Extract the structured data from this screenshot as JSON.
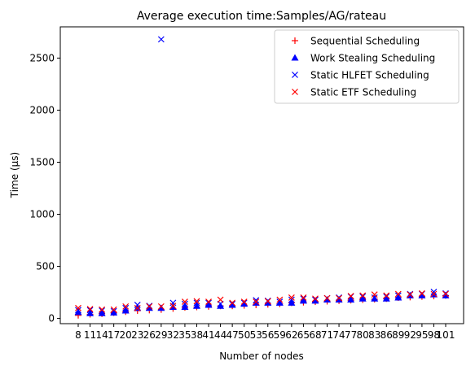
{
  "chart_data": {
    "type": "scatter",
    "title": "Average execution time:Samples/AG/rateau",
    "xlabel": "Number of nodes",
    "ylabel": "Time (µs)",
    "ylim": [
      -50,
      2800
    ],
    "y_ticks": [
      0,
      500,
      1000,
      1500,
      2000,
      2500
    ],
    "categories": [
      "8",
      "11",
      "14",
      "17",
      "20",
      "23",
      "26",
      "29",
      "32",
      "35",
      "38",
      "41",
      "44",
      "47",
      "50",
      "53",
      "56",
      "59",
      "62",
      "65",
      "68",
      "71",
      "74",
      "77",
      "80",
      "83",
      "86",
      "89",
      "92",
      "95",
      "98",
      "101"
    ],
    "grid": false,
    "legend_position": "top-right",
    "series": [
      {
        "name": "Sequential Scheduling",
        "marker": "plus",
        "color": "#ff0000",
        "values": [
          30,
          40,
          45,
          55,
          65,
          75,
          80,
          85,
          95,
          105,
          110,
          115,
          120,
          120,
          125,
          130,
          135,
          140,
          150,
          155,
          160,
          165,
          170,
          175,
          180,
          185,
          190,
          200,
          205,
          210,
          215,
          220
        ]
      },
      {
        "name": "Work Stealing Scheduling",
        "marker": "triangle",
        "color": "#0000ff",
        "values": [
          60,
          50,
          50,
          55,
          75,
          100,
          100,
          100,
          110,
          110,
          120,
          130,
          120,
          130,
          140,
          150,
          150,
          150,
          150,
          170,
          170,
          180,
          180,
          180,
          190,
          190,
          190,
          200,
          220,
          220,
          230,
          220
        ]
      },
      {
        "name": "Static HLFET Scheduling",
        "marker": "x",
        "color": "#0000ff",
        "values": [
          80,
          80,
          75,
          70,
          100,
          130,
          120,
          2680,
          150,
          140,
          150,
          150,
          140,
          140,
          150,
          175,
          170,
          160,
          180,
          190,
          180,
          195,
          200,
          210,
          210,
          200,
          210,
          220,
          235,
          235,
          255,
          240
        ]
      },
      {
        "name": "Static ETF Scheduling",
        "marker": "x",
        "color": "#ff0000",
        "values": [
          100,
          90,
          85,
          85,
          115,
          100,
          115,
          115,
          120,
          160,
          165,
          160,
          180,
          150,
          160,
          160,
          165,
          180,
          200,
          200,
          190,
          195,
          195,
          215,
          220,
          230,
          220,
          235,
          230,
          240,
          235,
          235
        ]
      }
    ]
  }
}
